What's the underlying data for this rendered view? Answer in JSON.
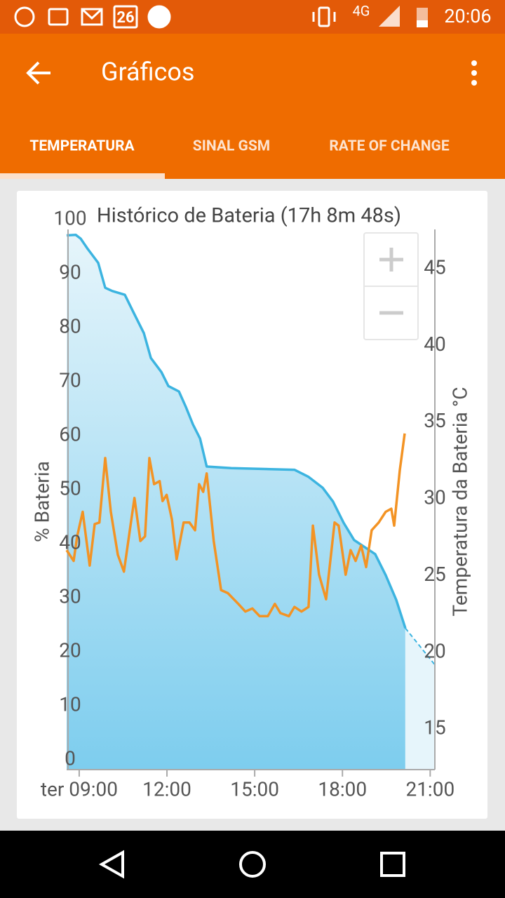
{
  "status_bar": {
    "calendar_day": "26",
    "network": "4G",
    "time": "20:06"
  },
  "app_bar": {
    "title": "Gráficos"
  },
  "tabs": [
    "TEMPERATURA",
    "SINAL GSM",
    "RATE OF CHANGE"
  ],
  "chart_data": {
    "type": "line",
    "title": "Histórico de Bateria (17h 8m 48s)",
    "y_label": "% Bateria",
    "y2_label": "Temperatura da Bateria °C",
    "xlim": [
      8.57,
      21.16
    ],
    "xticks": [
      {
        "value": 9,
        "label": "ter 09:00"
      },
      {
        "value": 12,
        "label": "12:00"
      },
      {
        "value": 15,
        "label": "15:00"
      },
      {
        "value": 18,
        "label": "18:00"
      },
      {
        "value": 21,
        "label": "21:00"
      }
    ],
    "ylim": [
      0,
      100
    ],
    "yticks": [
      0,
      10,
      20,
      30,
      40,
      50,
      60,
      70,
      80,
      90,
      100
    ],
    "y2lim": [
      13,
      48.2
    ],
    "y2ticks": [
      15,
      20,
      25,
      30,
      35,
      40,
      45
    ],
    "series": [
      {
        "color": "#3cb4e0",
        "area": true,
        "dashed": false,
        "x": [
          8.57,
          8.88,
          9.05,
          9.29,
          9.65,
          9.89,
          10.13,
          10.56,
          10.85,
          11.21,
          11.45,
          11.81,
          12.05,
          12.41,
          12.65,
          12.89,
          13.13,
          13.36,
          14.2,
          16.36,
          16.84,
          17.32,
          17.68,
          18.04,
          18.4,
          18.76,
          19.12,
          19.48,
          19.84,
          20.15
        ],
        "values": [
          98.9,
          99,
          98.3,
          96.4,
          93.8,
          89.2,
          88.6,
          87.9,
          84.7,
          80.8,
          76.2,
          73.6,
          71,
          70,
          67.1,
          63.9,
          61.3,
          56.1,
          55.8,
          55.5,
          54.2,
          52.2,
          49.6,
          45.7,
          42.5,
          41.2,
          39.9,
          36,
          31.4,
          26.2
        ]
      },
      {
        "color": "#3cb4e0",
        "area": true,
        "dashed": true,
        "x": [
          20.15,
          21.16
        ],
        "values": [
          26.2,
          19.4
        ]
      },
      {
        "color": "#f39324",
        "axis": "y2",
        "area": false,
        "dashed": false,
        "x": [
          8.57,
          8.81,
          8.93,
          9.12,
          9.36,
          9.53,
          9.69,
          9.89,
          10.08,
          10.32,
          10.53,
          10.73,
          10.89,
          11.09,
          11.25,
          11.4,
          11.56,
          11.75,
          11.85,
          11.99,
          12.17,
          12.33,
          12.57,
          12.77,
          12.96,
          13.1,
          13.24,
          13.36,
          13.6,
          13.85,
          14.08,
          14.44,
          14.68,
          14.92,
          15.17,
          15.45,
          15.69,
          15.88,
          16.17,
          16.36,
          16.6,
          16.84,
          16.99,
          17.2,
          17.44,
          17.73,
          17.87,
          18.11,
          18.28,
          18.45,
          18.64,
          18.81,
          19,
          19.24,
          19.48,
          19.67,
          19.77,
          19.96,
          20.13
        ],
        "values": [
          27.3,
          26.6,
          28.2,
          29.8,
          26.3,
          29,
          29.1,
          33.3,
          29.8,
          27,
          25.9,
          28.6,
          30.7,
          27.9,
          28.2,
          33.3,
          31.6,
          31.8,
          30.5,
          30.9,
          29.3,
          26.7,
          29.1,
          29.1,
          28.6,
          31.6,
          31.1,
          32.3,
          27.9,
          24.7,
          24.5,
          23.8,
          23.3,
          23.5,
          23,
          23,
          23.8,
          23.2,
          23,
          23.6,
          23.3,
          23.6,
          28.9,
          25.7,
          24.1,
          29.1,
          28.9,
          25.7,
          27.3,
          26.6,
          27.6,
          26.2,
          28.6,
          29.1,
          29.8,
          30,
          28.9,
          32.5,
          34.9
        ]
      }
    ]
  }
}
